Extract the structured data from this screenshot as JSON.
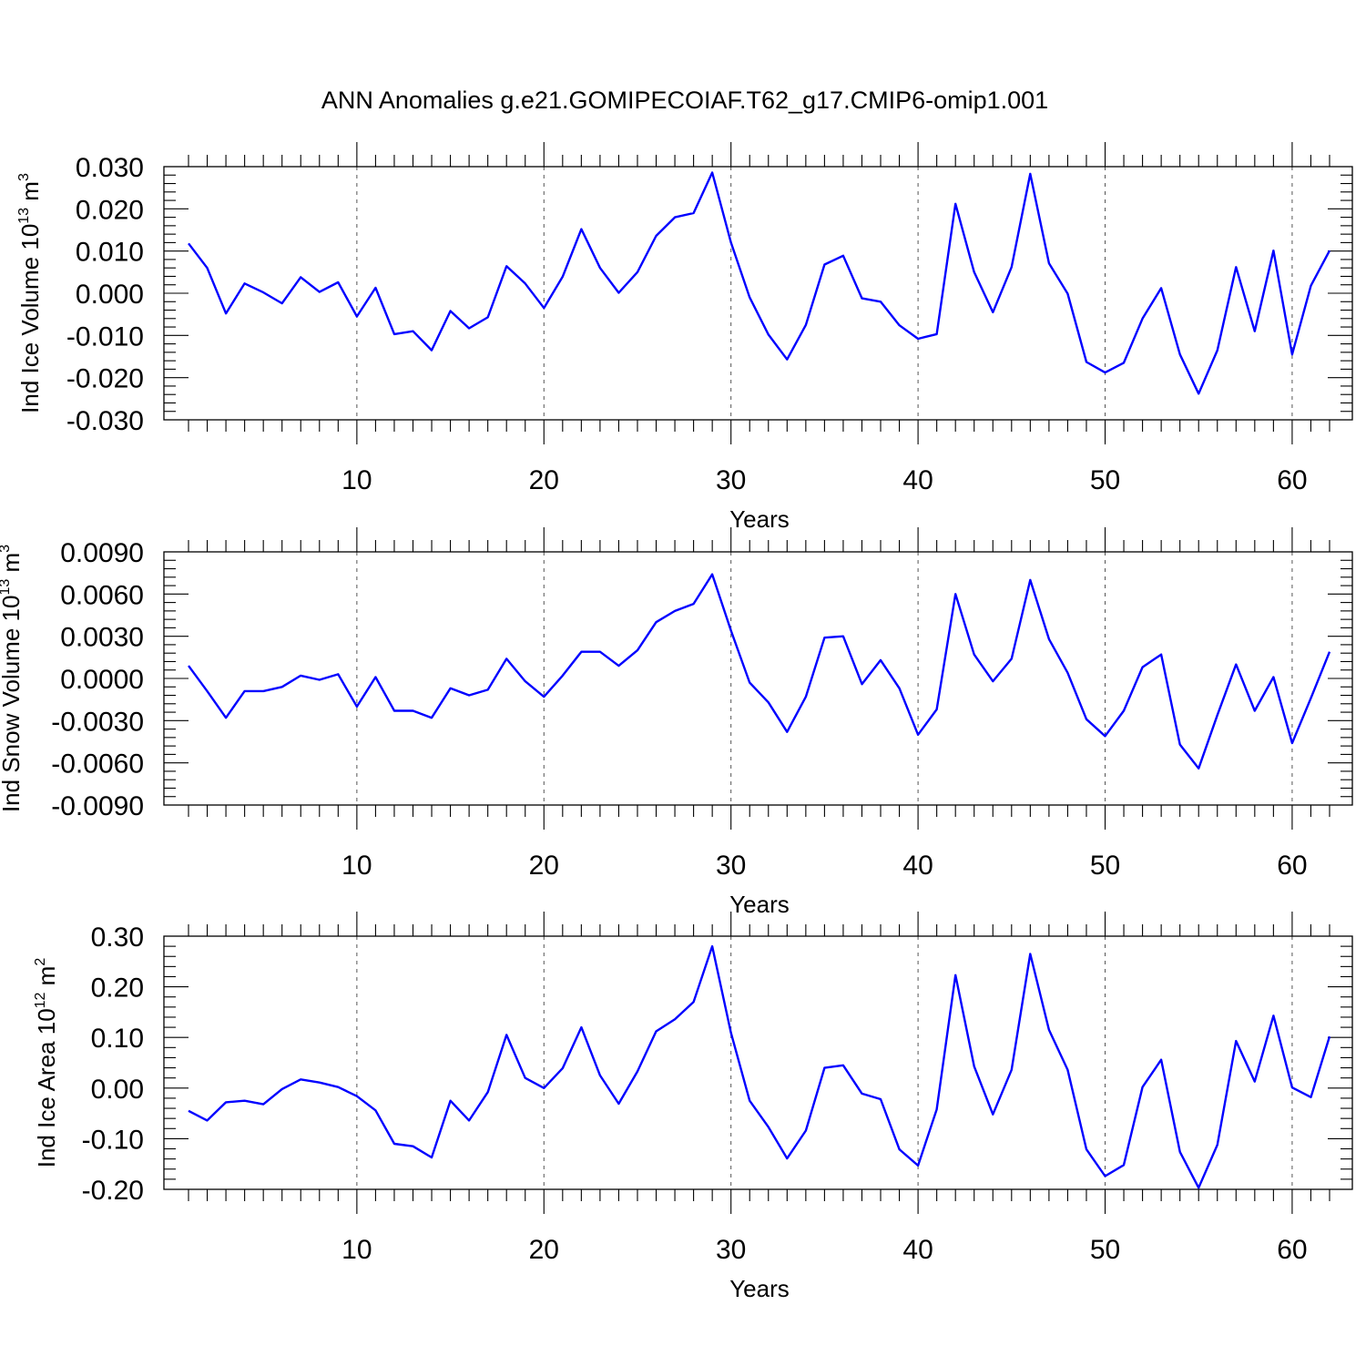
{
  "title": "ANN Anomalies g.e21.GOMIPECOIAF.T62_g17.CMIP6-omip1.001",
  "colors": {
    "line": "#0000ff",
    "axis": "#000000",
    "grid": "#555555"
  },
  "chart_data": [
    {
      "type": "line",
      "title": "ANN Anomalies g.e21.GOMIPECOIAF.T62_g17.CMIP6-omip1.001",
      "xlabel": "Years",
      "ylabel": {
        "text": "Ind Ice Volume 10",
        "sup": "13",
        "unit": " m",
        "unit_sup": "3"
      },
      "xlim": [
        1,
        62
      ],
      "ylim": [
        -0.03,
        0.03
      ],
      "xticks": [
        10,
        20,
        30,
        40,
        50,
        60
      ],
      "yticks": [
        -0.03,
        -0.02,
        -0.01,
        0.0,
        0.01,
        0.02,
        0.03
      ],
      "ytick_labels": [
        "-0.030",
        "-0.020",
        "-0.010",
        "0.000",
        "0.010",
        "0.020",
        "0.030"
      ],
      "grid": "vertical dashed at x ticks",
      "series": [
        {
          "name": "Ind Ice Volume",
          "x": [
            1,
            2,
            3,
            4,
            5,
            6,
            7,
            8,
            9,
            10,
            11,
            12,
            13,
            14,
            15,
            16,
            17,
            18,
            19,
            20,
            21,
            22,
            23,
            24,
            25,
            26,
            27,
            28,
            29,
            30,
            31,
            32,
            33,
            34,
            35,
            36,
            37,
            38,
            39,
            40,
            41,
            42,
            43,
            44,
            45,
            46,
            47,
            48,
            49,
            50,
            51,
            52,
            53,
            54,
            55,
            56,
            57,
            58,
            59,
            60,
            61,
            62
          ],
          "values": [
            0.0118,
            0.006,
            -0.0048,
            0.0023,
            0.0002,
            -0.0024,
            0.0038,
            0.0003,
            0.0026,
            -0.0055,
            0.0013,
            -0.0097,
            -0.009,
            -0.0135,
            -0.0042,
            -0.0083,
            -0.0057,
            0.0064,
            0.0023,
            -0.0035,
            0.0039,
            0.0152,
            0.006,
            0.0001,
            0.005,
            0.0136,
            0.018,
            0.019,
            0.0286,
            0.012,
            -0.001,
            -0.0098,
            -0.0157,
            -0.0075,
            0.0068,
            0.0089,
            -0.0012,
            -0.002,
            -0.0076,
            -0.0108,
            -0.0097,
            0.0212,
            0.005,
            -0.0045,
            0.0062,
            0.0283,
            0.0071,
            -0.0001,
            -0.0163,
            -0.0188,
            -0.0165,
            -0.006,
            0.0012,
            -0.0145,
            -0.0238,
            -0.0135,
            0.0062,
            -0.009,
            0.0101,
            -0.0145,
            0.0018,
            0.0101
          ]
        }
      ]
    },
    {
      "type": "line",
      "xlabel": "Years",
      "ylabel": {
        "text": "Ind Snow Volume 10",
        "sup": "13",
        "unit": " m",
        "unit_sup": "3"
      },
      "xlim": [
        1,
        62
      ],
      "ylim": [
        -0.009,
        0.009
      ],
      "xticks": [
        10,
        20,
        30,
        40,
        50,
        60
      ],
      "yticks": [
        -0.009,
        -0.006,
        -0.003,
        0.0,
        0.003,
        0.006,
        0.009
      ],
      "ytick_labels": [
        "-0.0090",
        "-0.0060",
        "-0.0030",
        "0.0000",
        "0.0030",
        "0.0060",
        "0.0090"
      ],
      "grid": "vertical dashed at x ticks",
      "series": [
        {
          "name": "Ind Snow Volume",
          "x": [
            1,
            2,
            3,
            4,
            5,
            6,
            7,
            8,
            9,
            10,
            11,
            12,
            13,
            14,
            15,
            16,
            17,
            18,
            19,
            20,
            21,
            22,
            23,
            24,
            25,
            26,
            27,
            28,
            29,
            30,
            31,
            32,
            33,
            34,
            35,
            36,
            37,
            38,
            39,
            40,
            41,
            42,
            43,
            44,
            45,
            46,
            47,
            48,
            49,
            50,
            51,
            52,
            53,
            54,
            55,
            56,
            57,
            58,
            59,
            60,
            61,
            62
          ],
          "values": [
            0.0009,
            -0.0009,
            -0.0028,
            -0.0009,
            -0.0009,
            -0.0006,
            0.0002,
            -0.0001,
            0.0003,
            -0.002,
            0.0001,
            -0.0023,
            -0.0023,
            -0.0028,
            -0.0007,
            -0.0012,
            -0.0008,
            0.0014,
            -0.0002,
            -0.0013,
            0.0002,
            0.0019,
            0.0019,
            0.0009,
            0.002,
            0.004,
            0.0048,
            0.0053,
            0.0074,
            0.0034,
            -0.0003,
            -0.0017,
            -0.0038,
            -0.0013,
            0.0029,
            0.003,
            -0.0004,
            0.0013,
            -0.0007,
            -0.004,
            -0.0022,
            0.006,
            0.0017,
            -0.0002,
            0.0014,
            0.007,
            0.0028,
            0.0004,
            -0.0029,
            -0.0041,
            -0.0023,
            0.0008,
            0.0017,
            -0.0047,
            -0.0064,
            -0.0026,
            0.001,
            -0.0023,
            0.0001,
            -0.0046,
            -0.0014,
            0.0019
          ]
        }
      ]
    },
    {
      "type": "line",
      "xlabel": "Years",
      "ylabel": {
        "text": "Ind Ice Area 10",
        "sup": "12",
        "unit": " m",
        "unit_sup": "2"
      },
      "xlim": [
        1,
        62
      ],
      "ylim": [
        -0.2,
        0.3
      ],
      "xticks": [
        10,
        20,
        30,
        40,
        50,
        60
      ],
      "yticks": [
        -0.2,
        -0.1,
        0.0,
        0.1,
        0.2,
        0.3
      ],
      "ytick_labels": [
        "-0.20",
        "-0.10",
        "0.00",
        "0.10",
        "0.20",
        "0.30"
      ],
      "grid": "vertical dashed at x ticks",
      "series": [
        {
          "name": "Ind Ice Area",
          "x": [
            1,
            2,
            3,
            4,
            5,
            6,
            7,
            8,
            9,
            10,
            11,
            12,
            13,
            14,
            15,
            16,
            17,
            18,
            19,
            20,
            21,
            22,
            23,
            24,
            25,
            26,
            27,
            28,
            29,
            30,
            31,
            32,
            33,
            34,
            35,
            36,
            37,
            38,
            39,
            40,
            41,
            42,
            43,
            44,
            45,
            46,
            47,
            48,
            49,
            50,
            51,
            52,
            53,
            54,
            55,
            56,
            57,
            58,
            59,
            60,
            61,
            62
          ],
          "values": [
            -0.045,
            -0.064,
            -0.028,
            -0.025,
            -0.032,
            -0.002,
            0.017,
            0.011,
            0.002,
            -0.016,
            -0.044,
            -0.11,
            -0.115,
            -0.137,
            -0.025,
            -0.064,
            -0.008,
            0.105,
            0.02,
            0.0,
            0.039,
            0.12,
            0.025,
            -0.031,
            0.033,
            0.112,
            0.136,
            0.17,
            0.28,
            0.109,
            -0.025,
            -0.077,
            -0.139,
            -0.084,
            0.04,
            0.045,
            -0.011,
            -0.022,
            -0.121,
            -0.153,
            -0.042,
            0.223,
            0.043,
            -0.052,
            0.036,
            0.265,
            0.115,
            0.036,
            -0.121,
            -0.174,
            -0.152,
            0.002,
            0.056,
            -0.126,
            -0.197,
            -0.112,
            0.093,
            0.013,
            0.143,
            0.001,
            -0.018,
            0.102
          ]
        }
      ]
    }
  ]
}
